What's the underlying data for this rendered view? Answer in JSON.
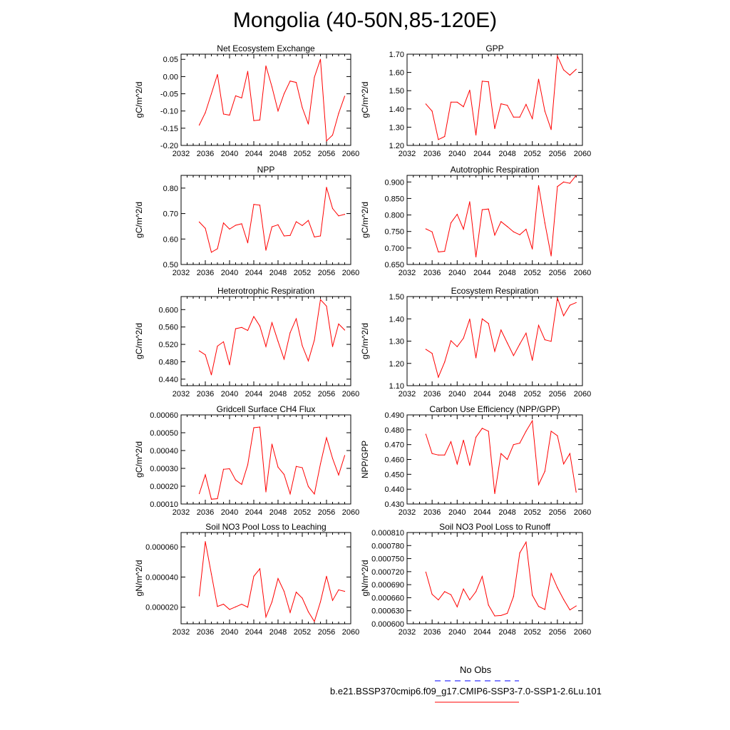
{
  "title": "Mongolia (40-50N,85-120E)",
  "legend": {
    "items": [
      {
        "label": "No Obs",
        "color": "#0000ff",
        "dash": true
      },
      {
        "label": "b.e21.BSSP370cmip6.f09_g17.CMIP6-SSP3-7.0-SSP1-2.6Lu.101",
        "color": "#ff0000",
        "dash": false
      }
    ]
  },
  "colors": {
    "series": "#ff0000",
    "obs": "#0000ff"
  },
  "chart_data": [
    {
      "type": "line",
      "title": "Net Ecosystem Exchange",
      "xlabel": "",
      "ylabel": "gC/m^2/d",
      "xlim": [
        2032,
        2060
      ],
      "ylim": [
        -0.2,
        0.065
      ],
      "xticks": [
        "2032",
        "2036",
        "2040",
        "2044",
        "2048",
        "2052",
        "2056",
        "2060"
      ],
      "yticks": [
        "-0.20",
        "-0.15",
        "-0.10",
        "-0.05",
        "0.00",
        "0.05"
      ],
      "x": [
        2035,
        2036,
        2037,
        2038,
        2039,
        2040,
        2041,
        2042,
        2043,
        2044,
        2045,
        2046,
        2047,
        2048,
        2049,
        2050,
        2051,
        2052,
        2053,
        2054,
        2055,
        2056,
        2057,
        2058,
        2059
      ],
      "y": [
        -0.141,
        -0.105,
        -0.05,
        0.006,
        -0.109,
        -0.112,
        -0.056,
        -0.062,
        0.015,
        -0.128,
        -0.126,
        0.031,
        -0.03,
        -0.1,
        -0.05,
        -0.013,
        -0.017,
        -0.09,
        -0.138,
        -0.002,
        0.05,
        -0.187,
        -0.17,
        -0.107,
        -0.057
      ]
    },
    {
      "type": "line",
      "title": "GPP",
      "xlabel": "",
      "ylabel": "gC/m^2/d",
      "xlim": [
        2032,
        2060
      ],
      "ylim": [
        1.2,
        1.7
      ],
      "xticks": [
        "2032",
        "2036",
        "2040",
        "2044",
        "2048",
        "2052",
        "2056",
        "2060"
      ],
      "yticks": [
        "1.20",
        "1.30",
        "1.40",
        "1.50",
        "1.60",
        "1.70"
      ],
      "x": [
        2035,
        2036,
        2037,
        2038,
        2039,
        2040,
        2041,
        2042,
        2043,
        2044,
        2045,
        2046,
        2047,
        2048,
        2049,
        2050,
        2051,
        2052,
        2053,
        2054,
        2055,
        2056,
        2057,
        2058,
        2059
      ],
      "y": [
        1.427,
        1.388,
        1.232,
        1.249,
        1.437,
        1.437,
        1.412,
        1.503,
        1.257,
        1.552,
        1.549,
        1.292,
        1.428,
        1.42,
        1.355,
        1.355,
        1.425,
        1.347,
        1.563,
        1.388,
        1.287,
        1.69,
        1.614,
        1.585,
        1.617
      ]
    },
    {
      "type": "line",
      "title": "NPP",
      "xlabel": "",
      "ylabel": "gC/m^2/d",
      "xlim": [
        2032,
        2060
      ],
      "ylim": [
        0.5,
        0.85
      ],
      "xticks": [
        "2032",
        "2036",
        "2040",
        "2044",
        "2048",
        "2052",
        "2056",
        "2060"
      ],
      "yticks": [
        "0.50",
        "0.60",
        "0.70",
        "0.80"
      ],
      "x": [
        2035,
        2036,
        2037,
        2038,
        2039,
        2040,
        2041,
        2042,
        2043,
        2044,
        2045,
        2046,
        2047,
        2048,
        2049,
        2050,
        2051,
        2052,
        2053,
        2054,
        2055,
        2056,
        2057,
        2058,
        2059
      ],
      "y": [
        0.667,
        0.642,
        0.548,
        0.562,
        0.663,
        0.639,
        0.654,
        0.66,
        0.585,
        0.736,
        0.733,
        0.556,
        0.648,
        0.656,
        0.612,
        0.614,
        0.668,
        0.653,
        0.673,
        0.608,
        0.612,
        0.803,
        0.72,
        0.691,
        0.697
      ]
    },
    {
      "type": "line",
      "title": "Autotrophic Respiration",
      "xlabel": "",
      "ylabel": "gC/m^2/d",
      "xlim": [
        2032,
        2060
      ],
      "ylim": [
        0.65,
        0.92
      ],
      "xticks": [
        "2032",
        "2036",
        "2040",
        "2044",
        "2048",
        "2052",
        "2056",
        "2060"
      ],
      "yticks": [
        "0.650",
        "0.700",
        "0.750",
        "0.800",
        "0.850",
        "0.900"
      ],
      "x": [
        2035,
        2036,
        2037,
        2038,
        2039,
        2040,
        2041,
        2042,
        2043,
        2044,
        2045,
        2046,
        2047,
        2048,
        2049,
        2050,
        2051,
        2052,
        2053,
        2054,
        2055,
        2056,
        2057,
        2058,
        2059
      ],
      "y": [
        0.758,
        0.749,
        0.688,
        0.69,
        0.776,
        0.802,
        0.757,
        0.84,
        0.673,
        0.816,
        0.818,
        0.739,
        0.78,
        0.765,
        0.749,
        0.74,
        0.757,
        0.697,
        0.889,
        0.776,
        0.676,
        0.886,
        0.9,
        0.896,
        0.92
      ]
    },
    {
      "type": "line",
      "title": "Heterotrophic Respiration",
      "xlabel": "",
      "ylabel": "gC/m^2/d",
      "xlim": [
        2032,
        2060
      ],
      "ylim": [
        0.425,
        0.63
      ],
      "xticks": [
        "2032",
        "2036",
        "2040",
        "2044",
        "2048",
        "2052",
        "2056",
        "2060"
      ],
      "yticks": [
        "0.440",
        "0.480",
        "0.520",
        "0.560",
        "0.600"
      ],
      "x": [
        2035,
        2036,
        2037,
        2038,
        2039,
        2040,
        2041,
        2042,
        2043,
        2044,
        2045,
        2046,
        2047,
        2048,
        2049,
        2050,
        2051,
        2052,
        2053,
        2054,
        2055,
        2056,
        2057,
        2058,
        2059
      ],
      "y": [
        0.505,
        0.496,
        0.45,
        0.516,
        0.526,
        0.473,
        0.556,
        0.559,
        0.552,
        0.584,
        0.562,
        0.515,
        0.57,
        0.527,
        0.486,
        0.547,
        0.579,
        0.517,
        0.482,
        0.53,
        0.623,
        0.608,
        0.515,
        0.567,
        0.553
      ]
    },
    {
      "type": "line",
      "title": "Ecosystem Respiration",
      "xlabel": "",
      "ylabel": "gC/m^2/d",
      "xlim": [
        2032,
        2060
      ],
      "ylim": [
        1.1,
        1.5
      ],
      "xticks": [
        "2032",
        "2036",
        "2040",
        "2044",
        "2048",
        "2052",
        "2056",
        "2060"
      ],
      "yticks": [
        "1.10",
        "1.20",
        "1.30",
        "1.40",
        "1.50"
      ],
      "x": [
        2035,
        2036,
        2037,
        2038,
        2039,
        2040,
        2041,
        2042,
        2043,
        2044,
        2045,
        2046,
        2047,
        2048,
        2049,
        2050,
        2051,
        2052,
        2053,
        2054,
        2055,
        2056,
        2057,
        2058,
        2059
      ],
      "y": [
        1.263,
        1.245,
        1.138,
        1.206,
        1.302,
        1.275,
        1.313,
        1.399,
        1.225,
        1.4,
        1.379,
        1.254,
        1.35,
        1.292,
        1.235,
        1.287,
        1.336,
        1.214,
        1.371,
        1.306,
        1.299,
        1.494,
        1.414,
        1.461,
        1.473
      ]
    },
    {
      "type": "line",
      "title": "Gridcell Surface CH4 Flux",
      "xlabel": "",
      "ylabel": "gC/m^2/d",
      "xlim": [
        2032,
        2060
      ],
      "ylim": [
        0.0001,
        0.0006
      ],
      "xticks": [
        "2032",
        "2036",
        "2040",
        "2044",
        "2048",
        "2052",
        "2056",
        "2060"
      ],
      "yticks": [
        "0.00010",
        "0.00020",
        "0.00030",
        "0.00040",
        "0.00050",
        "0.00060"
      ],
      "x": [
        2035,
        2036,
        2037,
        2038,
        2039,
        2040,
        2041,
        2042,
        2043,
        2044,
        2045,
        2046,
        2047,
        2048,
        2049,
        2050,
        2051,
        2052,
        2053,
        2054,
        2055,
        2056,
        2057,
        2058,
        2059
      ],
      "y": [
        0.000158,
        0.000264,
        0.000127,
        0.00013,
        0.000295,
        0.000298,
        0.000235,
        0.00021,
        0.00032,
        0.000528,
        0.000532,
        0.000168,
        0.000436,
        0.000307,
        0.000266,
        0.000157,
        0.000311,
        0.000304,
        0.000198,
        0.000156,
        0.000325,
        0.000472,
        0.000356,
        0.000263,
        0.000372
      ]
    },
    {
      "type": "line",
      "title": "Carbon Use Efficiency (NPP/GPP)",
      "xlabel": "",
      "ylabel": "NPP/GPP",
      "xlim": [
        2032,
        2060
      ],
      "ylim": [
        0.43,
        0.49
      ],
      "xticks": [
        "2032",
        "2036",
        "2040",
        "2044",
        "2048",
        "2052",
        "2056",
        "2060"
      ],
      "yticks": [
        "0.430",
        "0.440",
        "0.450",
        "0.460",
        "0.470",
        "0.480",
        "0.490"
      ],
      "x": [
        2035,
        2036,
        2037,
        2038,
        2039,
        2040,
        2041,
        2042,
        2043,
        2044,
        2045,
        2046,
        2047,
        2048,
        2049,
        2050,
        2051,
        2052,
        2053,
        2054,
        2055,
        2056,
        2057,
        2058,
        2059
      ],
      "y": [
        0.477,
        0.464,
        0.463,
        0.463,
        0.472,
        0.457,
        0.473,
        0.456,
        0.475,
        0.481,
        0.479,
        0.437,
        0.464,
        0.46,
        0.47,
        0.471,
        0.479,
        0.486,
        0.443,
        0.452,
        0.479,
        0.476,
        0.457,
        0.464,
        0.438
      ]
    },
    {
      "type": "line",
      "title": "Soil NO3 Pool Loss to Leaching",
      "xlabel": "",
      "ylabel": "gN/m^2/d",
      "xlim": [
        2032,
        2060
      ],
      "ylim": [
        9e-06,
        6.95e-05
      ],
      "xticks": [
        "2032",
        "2036",
        "2040",
        "2044",
        "2048",
        "2052",
        "2056",
        "2060"
      ],
      "yticks": [
        "0.000020",
        "0.000040",
        "0.000060"
      ],
      "x": [
        2035,
        2036,
        2037,
        2038,
        2039,
        2040,
        2041,
        2042,
        2043,
        2044,
        2045,
        2046,
        2047,
        2048,
        2049,
        2050,
        2051,
        2052,
        2053,
        2054,
        2055,
        2056,
        2057,
        2058,
        2059
      ],
      "y": [
        2.75e-05,
        6.35e-05,
        4.2e-05,
        2.05e-05,
        2.2e-05,
        1.85e-05,
        2.02e-05,
        2.2e-05,
        2e-05,
        4.05e-05,
        4.55e-05,
        1.35e-05,
        2.35e-05,
        3.9e-05,
        3.05e-05,
        1.65e-05,
        3e-05,
        2.6e-05,
        1.7e-05,
        1.05e-05,
        2.35e-05,
        4.05e-05,
        2.45e-05,
        3.15e-05,
        3.05e-05
      ]
    },
    {
      "type": "line",
      "title": "Soil NO3 Pool Loss to Runoff",
      "xlabel": "",
      "ylabel": "gN/m^2/d",
      "xlim": [
        2032,
        2060
      ],
      "ylim": [
        0.0006,
        0.00081
      ],
      "xticks": [
        "2032",
        "2036",
        "2040",
        "2044",
        "2048",
        "2052",
        "2056",
        "2060"
      ],
      "yticks": [
        "0.000600",
        "0.000630",
        "0.000660",
        "0.000690",
        "0.000720",
        "0.000750",
        "0.000780",
        "0.000810"
      ],
      "x": [
        2035,
        2036,
        2037,
        2038,
        2039,
        2040,
        2041,
        2042,
        2043,
        2044,
        2045,
        2046,
        2047,
        2048,
        2049,
        2050,
        2051,
        2052,
        2053,
        2054,
        2055,
        2056,
        2057,
        2058,
        2059
      ],
      "y": [
        0.000719,
        0.000668,
        0.000655,
        0.000674,
        0.000667,
        0.000639,
        0.00068,
        0.000655,
        0.000674,
        0.000709,
        0.000643,
        0.000618,
        0.000619,
        0.000624,
        0.000663,
        0.000763,
        0.000788,
        0.000666,
        0.00064,
        0.000633,
        0.000716,
        0.000683,
        0.000656,
        0.000632,
        0.000641
      ]
    }
  ]
}
